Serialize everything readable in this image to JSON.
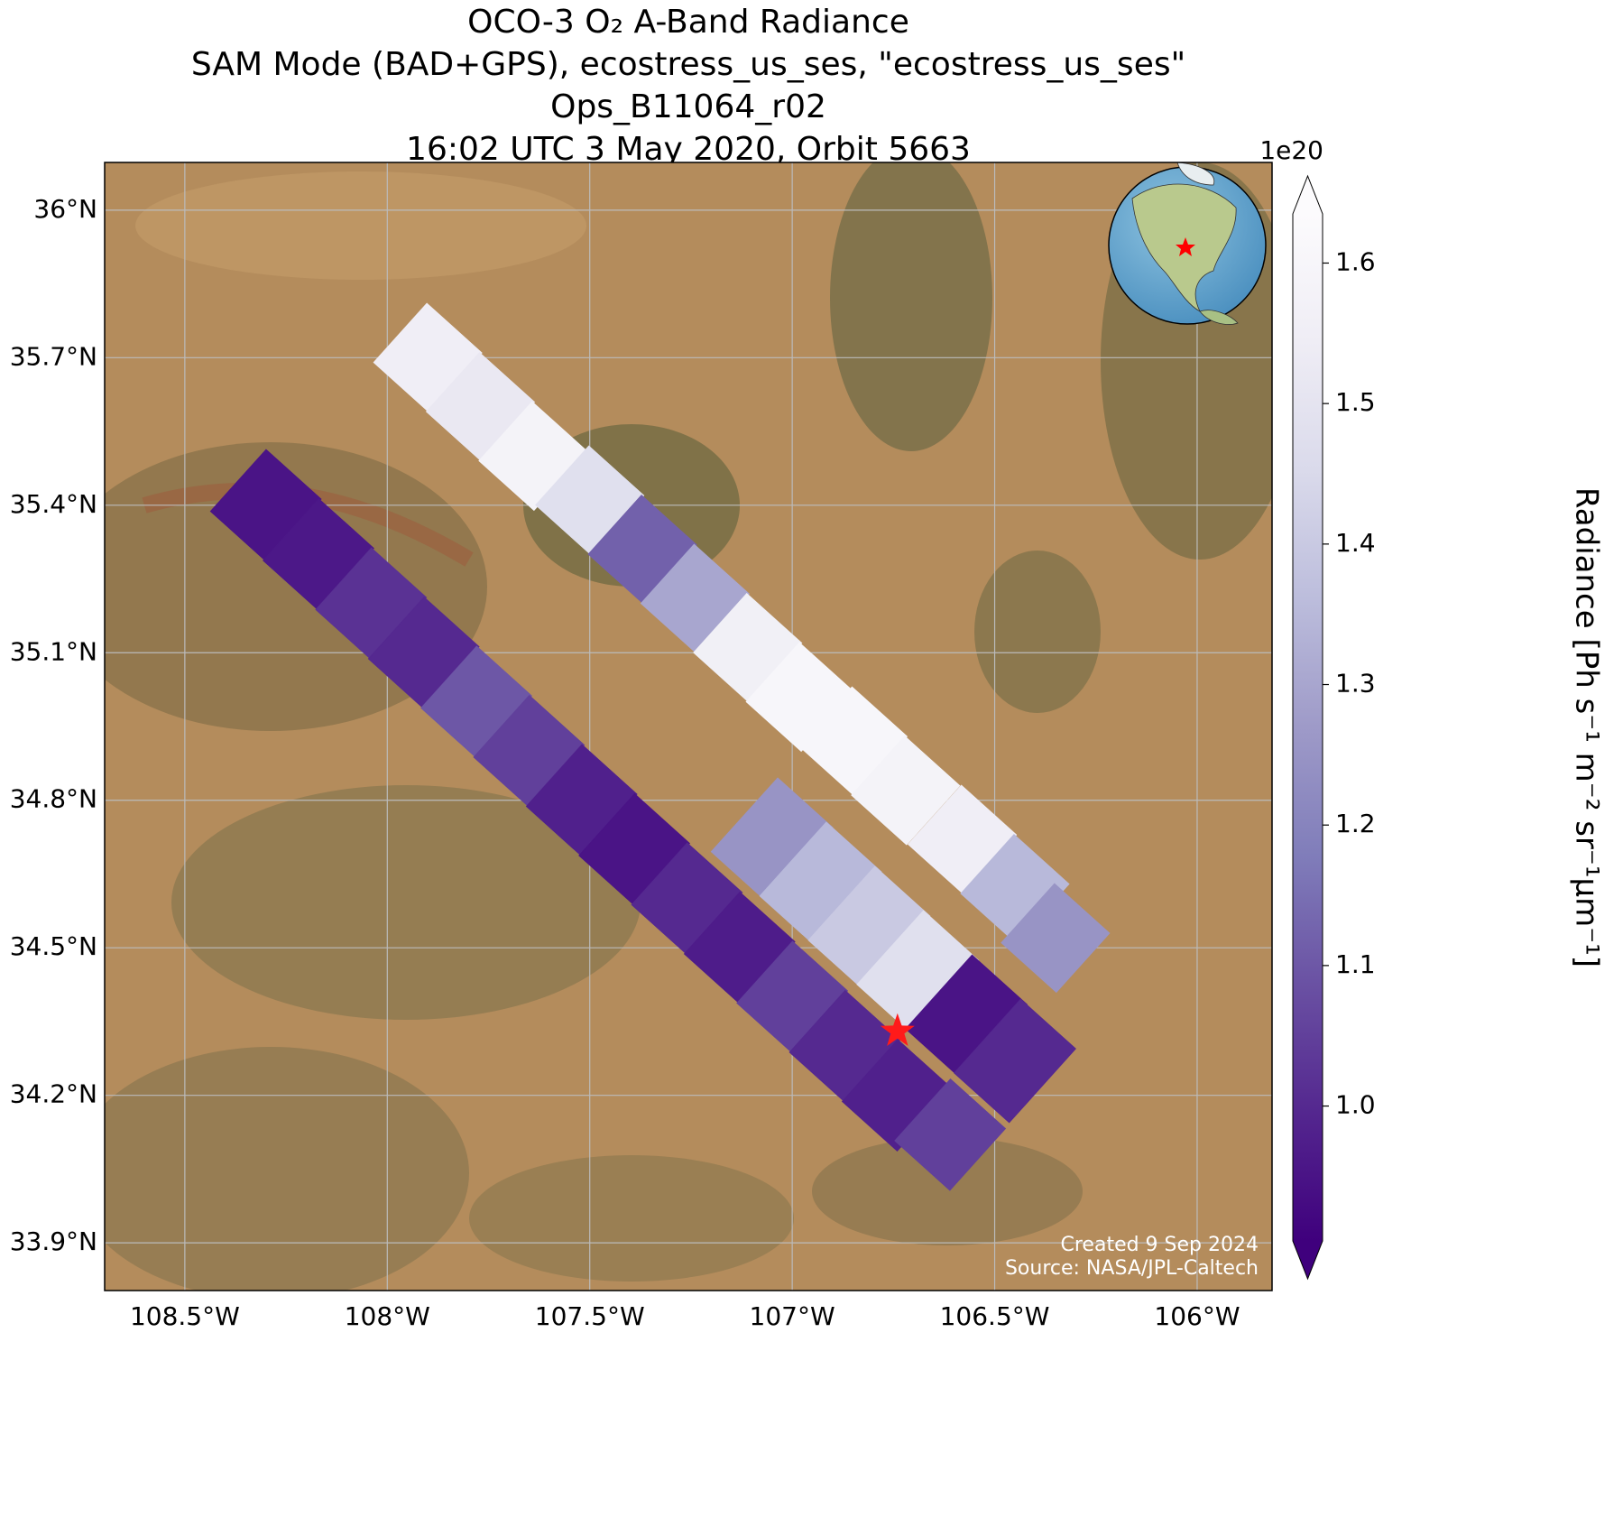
{
  "chart_data": {
    "type": "swath-map",
    "title": [
      "OCO-3 O₂ A-Band Radiance",
      "SAM Mode (BAD+GPS), ecostress_us_ses, \"ecostress_us_ses\"",
      "Ops_B11064_r02",
      "16:02 UTC 3 May 2020, Orbit 5663"
    ],
    "xlim": [
      -108.698,
      -105.815
    ],
    "ylim": [
      33.803,
      36.097
    ],
    "xticks": [
      {
        "value": -108.5,
        "label": "108.5°W"
      },
      {
        "value": -108,
        "label": "108°W"
      },
      {
        "value": -107.5,
        "label": "107.5°W"
      },
      {
        "value": -107,
        "label": "107°W"
      },
      {
        "value": -106.5,
        "label": "106.5°W"
      },
      {
        "value": -106,
        "label": "106°W"
      }
    ],
    "yticks": [
      {
        "value": 33.9,
        "label": "33.9°N"
      },
      {
        "value": 34.2,
        "label": "34.2°N"
      },
      {
        "value": 34.5,
        "label": "34.5°N"
      },
      {
        "value": 34.8,
        "label": "34.8°N"
      },
      {
        "value": 35.1,
        "label": "35.1°N"
      },
      {
        "value": 35.4,
        "label": "35.4°N"
      },
      {
        "value": 35.7,
        "label": "35.7°N"
      },
      {
        "value": 36,
        "label": "36°N"
      }
    ],
    "grid": true,
    "colorbar": {
      "label": "Radiance [Ph s⁻¹ m⁻² sr⁻¹µm⁻¹]",
      "offset": "1e20",
      "clim": [
        0.904,
        1.635
      ],
      "ticks": [
        {
          "value": 1.0,
          "label": "1.0"
        },
        1.1,
        1.2,
        1.3,
        1.4,
        1.5,
        1.6
      ],
      "colors": [
        "#3f007d",
        "#54278f",
        "#6a51a3",
        "#807dba",
        "#9e9ac8",
        "#bcbddc",
        "#dadaeb",
        "#efedf5",
        "#fcfbfd"
      ]
    },
    "swaths": [
      {
        "lon": [
          -107.9,
          -107.77,
          -107.64,
          -107.5,
          -107.37,
          -107.24,
          -107.11,
          -106.98,
          -106.85,
          -106.72,
          -106.58,
          -106.45,
          -106.35
        ],
        "lat": [
          35.7,
          35.6,
          35.5,
          35.41,
          35.31,
          35.21,
          35.11,
          35.01,
          34.92,
          34.82,
          34.72,
          34.62,
          34.52
        ],
        "radiance": [
          1.55,
          1.52,
          1.58,
          1.48,
          1.12,
          1.3,
          1.56,
          1.6,
          1.6,
          1.58,
          1.55,
          1.35,
          1.25
        ]
      },
      {
        "lon": [
          -108.3,
          -108.17,
          -108.04,
          -107.91,
          -107.78,
          -107.65,
          -107.52,
          -107.39,
          -107.26,
          -107.13,
          -107.0,
          -106.87,
          -106.74,
          -106.61
        ],
        "lat": [
          35.4,
          35.3,
          35.2,
          35.1,
          35.0,
          34.9,
          34.8,
          34.7,
          34.6,
          34.5,
          34.4,
          34.3,
          34.2,
          34.12
        ],
        "radiance": [
          0.95,
          0.96,
          1.02,
          1.0,
          1.1,
          1.05,
          0.98,
          0.95,
          1.0,
          0.97,
          1.05,
          1.0,
          0.98,
          1.05
        ]
      },
      {
        "lon": [
          -107.05,
          -106.93,
          -106.81,
          -106.69,
          -106.57,
          -106.45
        ],
        "lat": [
          34.72,
          34.63,
          34.54,
          34.45,
          34.36,
          34.27
        ],
        "radiance": [
          1.25,
          1.35,
          1.4,
          1.48,
          0.95,
          1.0
        ]
      }
    ],
    "target": {
      "lon": -106.74,
      "lat": 34.33
    },
    "credits": [
      "Created 9 Sep 2024",
      "Source: NASA/JPL-Caltech"
    ]
  }
}
